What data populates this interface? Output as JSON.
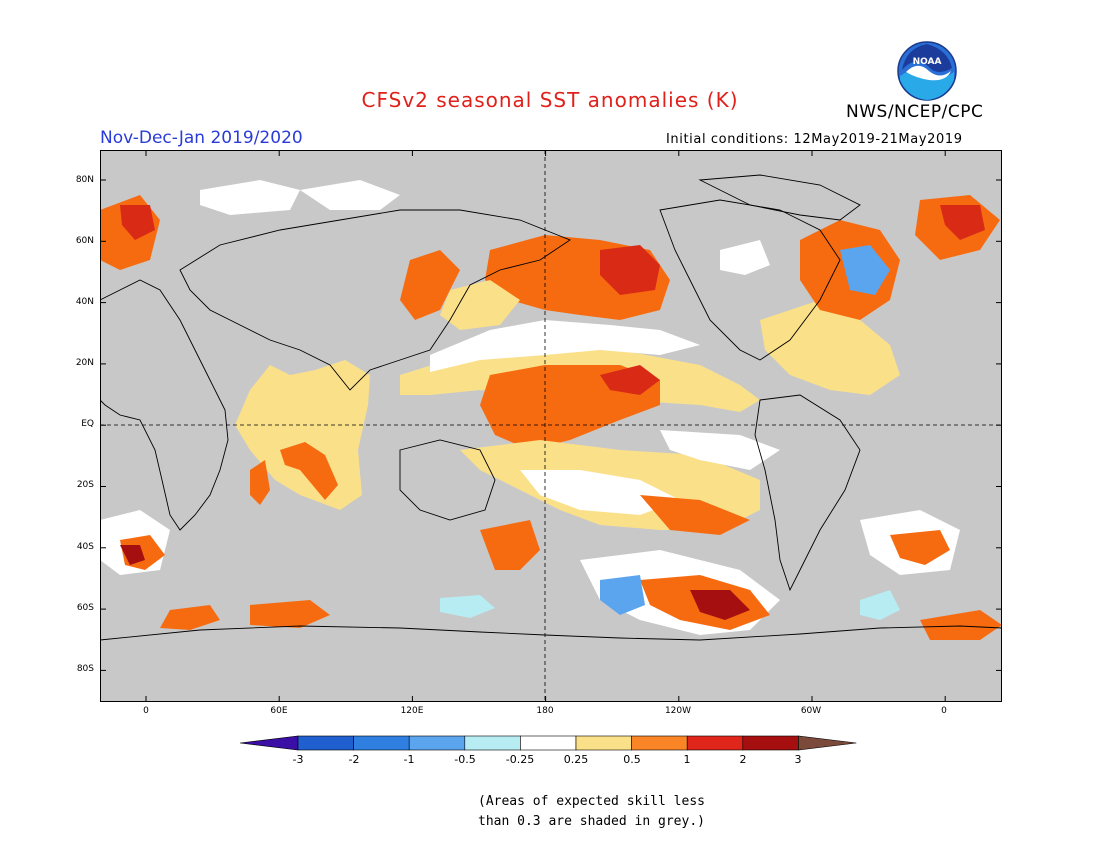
{
  "title": "CFSv2 seasonal SST anomalies (K)",
  "period": "Nov-Dec-Jan 2019/2020",
  "agency": "NWS/NCEP/CPC",
  "logo_text": "NOAA",
  "initial_conditions": "Initial conditions: 12May2019-21May2019",
  "lat_labels": [
    "80N",
    "60N",
    "40N",
    "20N",
    "EQ",
    "20S",
    "40S",
    "60S",
    "80S"
  ],
  "lon_labels": [
    "0",
    "60E",
    "120E",
    "180",
    "120W",
    "60W",
    "0"
  ],
  "colorbar": {
    "labels": [
      "-3",
      "-2",
      "-1",
      "-0.5",
      "-0.25",
      "0.25",
      "0.5",
      "1",
      "2",
      "3"
    ],
    "colors": [
      "#3b0fa6",
      "#1f5fcf",
      "#2f7fe0",
      "#5aa5ee",
      "#b7ecf2",
      "#ffffff",
      "#fbe08a",
      "#f98526",
      "#e0251b",
      "#a50f0f",
      "#7b4a3a"
    ]
  },
  "note_lines": [
    "(Areas of expected skill less",
    "than 0.3 are shaded in grey.)"
  ],
  "map_colors": {
    "grey": "#c8c8c8",
    "white": "#ffffff",
    "yellow": "#fbe08a",
    "orange": "#f76b10",
    "red": "#d92a16",
    "darkred": "#a50f0f",
    "lightblue": "#b7ecf2",
    "blue": "#5aa5ee"
  }
}
